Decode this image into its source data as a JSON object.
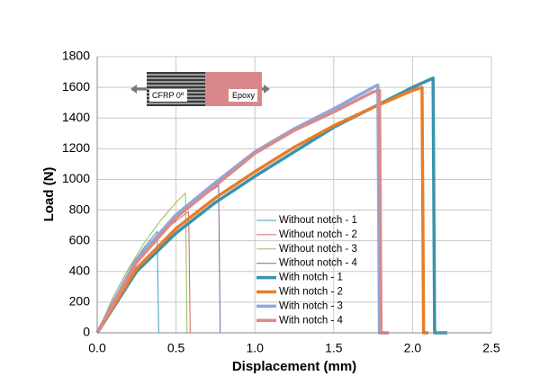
{
  "chart_data": {
    "type": "line",
    "x_label": "Displacement (mm)",
    "y_label": "Load (N)",
    "xlim": [
      0,
      2.5
    ],
    "ylim": [
      0,
      1800
    ],
    "xticks": [
      {
        "value": 0,
        "label": "0.0"
      },
      0.5,
      {
        "value": 1,
        "label": "1.0"
      },
      1.5,
      {
        "value": 2,
        "label": "2.0"
      },
      2.5
    ],
    "yticks": [
      0,
      200,
      400,
      600,
      800,
      1000,
      1200,
      1400,
      1600,
      1800
    ],
    "grid": true,
    "legend": "center",
    "annotations": [
      "CFRP 0º",
      "Epoxy"
    ],
    "series": [
      {
        "name": "Without notch - 1",
        "color": "#3a9fb5",
        "linewidth": 1,
        "x": [
          0,
          0.1,
          0.2,
          0.3,
          0.38,
          0.39,
          0.42
        ],
        "values": [
          0,
          230,
          420,
          560,
          660,
          0,
          0
        ]
      },
      {
        "name": "Without notch - 2",
        "color": "#d36060",
        "linewidth": 1,
        "x": [
          0,
          0.1,
          0.2,
          0.3,
          0.4,
          0.5,
          0.58,
          0.59,
          0.6
        ],
        "values": [
          0,
          210,
          390,
          530,
          640,
          730,
          790,
          0,
          0
        ]
      },
      {
        "name": "Without notch - 3",
        "color": "#9bbb59",
        "linewidth": 1,
        "x": [
          0,
          0.1,
          0.2,
          0.3,
          0.4,
          0.5,
          0.56,
          0.57,
          0.58
        ],
        "values": [
          0,
          230,
          420,
          590,
          730,
          850,
          910,
          0,
          0
        ]
      },
      {
        "name": "Without notch - 4",
        "color": "#7f62a0",
        "linewidth": 1,
        "x": [
          0,
          0.1,
          0.2,
          0.3,
          0.4,
          0.5,
          0.6,
          0.7,
          0.77,
          0.78,
          0.8
        ],
        "values": [
          0,
          200,
          380,
          520,
          640,
          740,
          830,
          910,
          960,
          0,
          0
        ]
      },
      {
        "name": "With notch - 1",
        "color": "#3a93ad",
        "linewidth": 3.5,
        "x": [
          0,
          0.25,
          0.5,
          0.75,
          1.0,
          1.25,
          1.5,
          1.75,
          2.0,
          2.13,
          2.14,
          2.22
        ],
        "values": [
          0,
          400,
          650,
          850,
          1020,
          1180,
          1340,
          1470,
          1600,
          1660,
          0,
          0
        ]
      },
      {
        "name": "With notch - 2",
        "color": "#e87d27",
        "linewidth": 3.5,
        "x": [
          0,
          0.25,
          0.5,
          0.75,
          1.0,
          1.25,
          1.5,
          1.75,
          2.0,
          2.06,
          2.07,
          2.1
        ],
        "values": [
          0,
          420,
          680,
          880,
          1050,
          1210,
          1350,
          1470,
          1580,
          1600,
          0,
          0
        ]
      },
      {
        "name": "With notch - 3",
        "color": "#8ea8dc",
        "linewidth": 3.5,
        "x": [
          0,
          0.25,
          0.5,
          0.75,
          1.0,
          1.25,
          1.5,
          1.75,
          1.78,
          1.79,
          1.82
        ],
        "values": [
          0,
          480,
          770,
          980,
          1180,
          1330,
          1460,
          1600,
          1615,
          0,
          0
        ]
      },
      {
        "name": "With notch - 4",
        "color": "#d98a8a",
        "linewidth": 3.5,
        "x": [
          0,
          0.25,
          0.5,
          0.75,
          1.0,
          1.25,
          1.5,
          1.75,
          1.79,
          1.8,
          1.85
        ],
        "values": [
          0,
          460,
          750,
          960,
          1170,
          1320,
          1440,
          1570,
          1580,
          0,
          0
        ]
      }
    ]
  }
}
